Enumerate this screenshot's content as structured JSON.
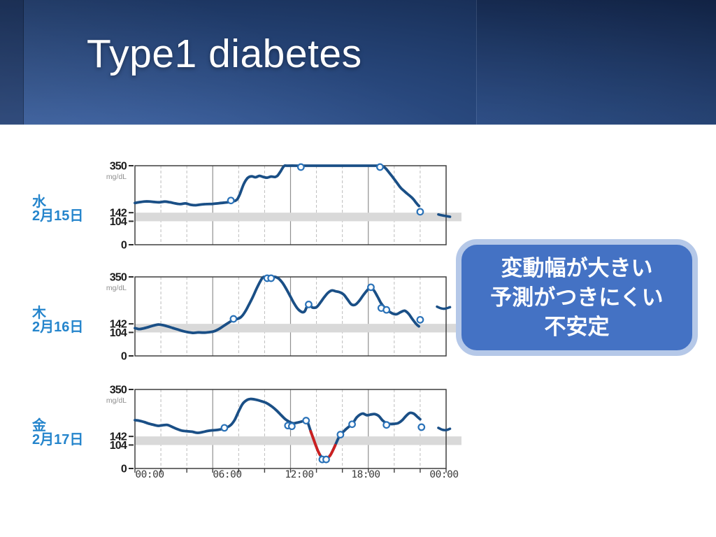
{
  "slide": {
    "title": "Type1 diabetes",
    "callout": {
      "lines": [
        "変動幅が大きい",
        "予測がつきにくい",
        "不安定"
      ]
    }
  },
  "axis": {
    "unit": "mg/dL",
    "y_tick_labels": [
      "350",
      "142",
      "104",
      "0"
    ],
    "y_tick_values": [
      350,
      142,
      104,
      0
    ],
    "ylim": [
      0,
      350
    ],
    "x_labels": [
      "00:00",
      "06:00",
      "12:00",
      "18:00",
      "00:00"
    ],
    "x_label_hours": [
      0,
      6,
      12,
      18,
      24
    ],
    "hours_span": 24,
    "target_band_mgdl": [
      104,
      142
    ],
    "solid_grid_hours": [
      6,
      12,
      18
    ],
    "dashed_grid_hours": [
      2,
      4,
      8,
      10,
      14,
      16,
      20,
      22
    ],
    "grid": true
  },
  "colors": {
    "line": "#1a4f86",
    "marker_ring": "#2a72b8",
    "hypo_red": "#cc2020",
    "band": "#d9d9d9",
    "grid_dashed": "#bcbcbc",
    "grid_solid": "#8f8f8f",
    "frame": "#3f3f3f",
    "tick": "#2b2b2b",
    "day_label": "#2585cc",
    "axis_text": "#1b1b1b",
    "unit_text": "#8f8f8f",
    "x_label_text": "#3c3c3c",
    "callout_fill": "#4472c4",
    "callout_border": "#b5c8e8",
    "callout_text": "#ffffff",
    "title_text": "#ffffff"
  },
  "chart_data": [
    {
      "type": "line",
      "day_label": "水",
      "date_label": "2月15日",
      "ylim": [
        0,
        350
      ],
      "x_hours": [
        0,
        24
      ],
      "points": [
        [
          0,
          185
        ],
        [
          0.4,
          189
        ],
        [
          0.9,
          192
        ],
        [
          1.4,
          190
        ],
        [
          1.9,
          188
        ],
        [
          2.3,
          191
        ],
        [
          2.7,
          188
        ],
        [
          3.1,
          183
        ],
        [
          3.5,
          180
        ],
        [
          3.9,
          183
        ],
        [
          4.3,
          177
        ],
        [
          4.7,
          175
        ],
        [
          5.1,
          178
        ],
        [
          5.5,
          180
        ],
        [
          6,
          181
        ],
        [
          6.5,
          184
        ],
        [
          7,
          187
        ],
        [
          7.4,
          190
        ],
        [
          7.7,
          194
        ],
        [
          7.9,
          202
        ],
        [
          8.1,
          225
        ],
        [
          8.4,
          270
        ],
        [
          8.7,
          296
        ],
        [
          9,
          303
        ],
        [
          9.3,
          299
        ],
        [
          9.6,
          305
        ],
        [
          9.9,
          300
        ],
        [
          10.2,
          297
        ],
        [
          10.5,
          302
        ],
        [
          10.8,
          300
        ],
        [
          11,
          306
        ],
        [
          11.2,
          322
        ],
        [
          11.5,
          348
        ],
        [
          11.8,
          350
        ],
        [
          13,
          350
        ],
        [
          15,
          350
        ],
        [
          17,
          350
        ],
        [
          18.6,
          350
        ],
        [
          19,
          350
        ],
        [
          19.3,
          340
        ],
        [
          19.6,
          320
        ],
        [
          19.9,
          298
        ],
        [
          20.2,
          275
        ],
        [
          20.5,
          252
        ],
        [
          20.8,
          236
        ],
        [
          21,
          226
        ],
        [
          21.3,
          212
        ],
        [
          21.5,
          200
        ],
        [
          21.7,
          185
        ],
        [
          21.9,
          172
        ]
      ],
      "markers": [
        [
          7.4,
          196
        ],
        [
          12.8,
          344
        ],
        [
          18.9,
          344
        ],
        [
          22,
          146
        ]
      ],
      "tail_points": [
        [
          23.4,
          134
        ],
        [
          23.7,
          130
        ],
        [
          24,
          127
        ],
        [
          24.3,
          124
        ]
      ],
      "red_segments": []
    },
    {
      "type": "line",
      "day_label": "木",
      "date_label": "2月16日",
      "ylim": [
        0,
        350
      ],
      "x_hours": [
        0,
        24
      ],
      "points": [
        [
          0,
          123
        ],
        [
          0.3,
          119
        ],
        [
          0.6,
          121
        ],
        [
          1,
          127
        ],
        [
          1.4,
          134
        ],
        [
          1.8,
          139
        ],
        [
          2.1,
          137
        ],
        [
          2.5,
          131
        ],
        [
          2.9,
          124
        ],
        [
          3.3,
          117
        ],
        [
          3.7,
          110
        ],
        [
          4.1,
          105
        ],
        [
          4.5,
          102
        ],
        [
          4.9,
          104
        ],
        [
          5.3,
          103
        ],
        [
          5.7,
          105
        ],
        [
          6.1,
          109
        ],
        [
          6.5,
          120
        ],
        [
          6.9,
          135
        ],
        [
          7.3,
          150
        ],
        [
          7.6,
          160
        ],
        [
          7.9,
          164
        ],
        [
          8.2,
          173
        ],
        [
          8.5,
          196
        ],
        [
          8.8,
          228
        ],
        [
          9.1,
          262
        ],
        [
          9.4,
          300
        ],
        [
          9.7,
          334
        ],
        [
          9.9,
          349
        ],
        [
          10.2,
          350
        ],
        [
          10.5,
          350
        ],
        [
          10.8,
          350
        ],
        [
          11.1,
          342
        ],
        [
          11.4,
          322
        ],
        [
          11.7,
          294
        ],
        [
          12,
          262
        ],
        [
          12.3,
          230
        ],
        [
          12.6,
          206
        ],
        [
          12.9,
          194
        ],
        [
          13.1,
          198
        ],
        [
          13.3,
          222
        ],
        [
          13.5,
          224
        ],
        [
          13.7,
          214
        ],
        [
          14,
          216
        ],
        [
          14.3,
          236
        ],
        [
          14.6,
          260
        ],
        [
          14.9,
          280
        ],
        [
          15.2,
          290
        ],
        [
          15.5,
          286
        ],
        [
          15.8,
          282
        ],
        [
          16.1,
          272
        ],
        [
          16.4,
          250
        ],
        [
          16.7,
          228
        ],
        [
          17,
          227
        ],
        [
          17.3,
          244
        ],
        [
          17.6,
          268
        ],
        [
          17.9,
          290
        ],
        [
          18.1,
          299
        ],
        [
          18.4,
          292
        ],
        [
          18.7,
          264
        ],
        [
          19,
          232
        ],
        [
          19.3,
          211
        ],
        [
          19.6,
          197
        ],
        [
          19.9,
          187
        ],
        [
          20.2,
          185
        ],
        [
          20.5,
          194
        ],
        [
          20.8,
          200
        ],
        [
          21.1,
          187
        ],
        [
          21.4,
          163
        ],
        [
          21.7,
          141
        ],
        [
          21.9,
          131
        ]
      ],
      "markers": [
        [
          7.6,
          164
        ],
        [
          10.2,
          344
        ],
        [
          10.5,
          344
        ],
        [
          13.4,
          228
        ],
        [
          18.2,
          304
        ],
        [
          19,
          212
        ],
        [
          19.4,
          204
        ],
        [
          22,
          160
        ]
      ],
      "tail_points": [
        [
          23.3,
          218
        ],
        [
          23.6,
          211
        ],
        [
          23.9,
          209
        ],
        [
          24.3,
          216
        ]
      ],
      "red_segments": []
    },
    {
      "type": "line",
      "day_label": "金",
      "date_label": "2月17日",
      "ylim": [
        0,
        350
      ],
      "x_hours": [
        0,
        24
      ],
      "points": [
        [
          0,
          214
        ],
        [
          0.3,
          212
        ],
        [
          0.7,
          206
        ],
        [
          1,
          200
        ],
        [
          1.4,
          194
        ],
        [
          1.8,
          189
        ],
        [
          2.1,
          191
        ],
        [
          2.5,
          193
        ],
        [
          2.8,
          186
        ],
        [
          3.2,
          176
        ],
        [
          3.6,
          168
        ],
        [
          4,
          165
        ],
        [
          4.4,
          163
        ],
        [
          4.8,
          158
        ],
        [
          5.2,
          161
        ],
        [
          5.6,
          166
        ],
        [
          6,
          169
        ],
        [
          6.4,
          171
        ],
        [
          6.8,
          176
        ],
        [
          7.1,
          182
        ],
        [
          7.4,
          193
        ],
        [
          7.7,
          216
        ],
        [
          8,
          253
        ],
        [
          8.3,
          286
        ],
        [
          8.6,
          302
        ],
        [
          8.9,
          308
        ],
        [
          9.3,
          305
        ],
        [
          9.7,
          299
        ],
        [
          10.1,
          291
        ],
        [
          10.5,
          277
        ],
        [
          10.9,
          258
        ],
        [
          11.3,
          235
        ],
        [
          11.6,
          218
        ],
        [
          11.9,
          207
        ],
        [
          12.2,
          200
        ],
        [
          12.5,
          203
        ],
        [
          12.8,
          207
        ],
        [
          13.1,
          212
        ],
        [
          13.3,
          207
        ],
        [
          13.5,
          175
        ],
        [
          13.7,
          142
        ],
        [
          13.9,
          110
        ],
        [
          14.1,
          80
        ],
        [
          14.3,
          58
        ],
        [
          14.5,
          45
        ],
        [
          14.7,
          42
        ],
        [
          14.9,
          48
        ],
        [
          15.1,
          62
        ],
        [
          15.3,
          85
        ],
        [
          15.5,
          110
        ],
        [
          15.7,
          135
        ],
        [
          15.9,
          152
        ],
        [
          16.2,
          170
        ],
        [
          16.5,
          185
        ],
        [
          16.8,
          200
        ],
        [
          17.1,
          226
        ],
        [
          17.4,
          240
        ],
        [
          17.6,
          243
        ],
        [
          17.9,
          236
        ],
        [
          18.2,
          239
        ],
        [
          18.5,
          241
        ],
        [
          18.8,
          233
        ],
        [
          19.1,
          213
        ],
        [
          19.4,
          201
        ],
        [
          19.7,
          197
        ],
        [
          20,
          198
        ],
        [
          20.3,
          201
        ],
        [
          20.6,
          213
        ],
        [
          20.9,
          232
        ],
        [
          21.2,
          246
        ],
        [
          21.5,
          243
        ],
        [
          21.8,
          228
        ],
        [
          22,
          218
        ]
      ],
      "markers": [
        [
          6.9,
          180
        ],
        [
          11.8,
          190
        ],
        [
          12.1,
          187
        ],
        [
          13.2,
          212
        ],
        [
          14.45,
          40
        ],
        [
          14.75,
          40
        ],
        [
          15.85,
          150
        ],
        [
          16.75,
          196
        ],
        [
          19.4,
          193
        ],
        [
          22.1,
          183
        ]
      ],
      "tail_points": [
        [
          23.4,
          180
        ],
        [
          23.7,
          172
        ],
        [
          24,
          170
        ],
        [
          24.3,
          176
        ]
      ],
      "red_segments": [
        [
          [
            13.55,
            165
          ],
          [
            13.7,
            142
          ],
          [
            13.9,
            110
          ],
          [
            14.1,
            80
          ],
          [
            14.25,
            62
          ]
        ],
        [
          [
            14.85,
            46
          ],
          [
            15.05,
            57
          ],
          [
            15.25,
            78
          ],
          [
            15.45,
            103
          ]
        ]
      ]
    }
  ]
}
